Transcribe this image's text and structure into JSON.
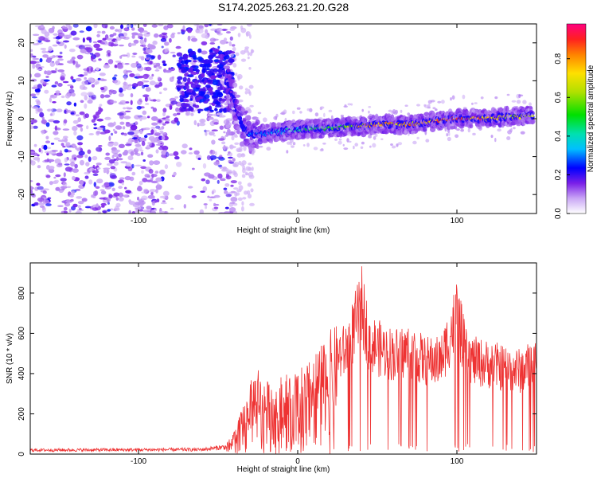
{
  "chart_data": [
    {
      "type": "heatmap",
      "title": "S174.2025.263.21.20.G28",
      "xlabel": "Height of straight line (km)",
      "ylabel": "Frequency (Hz)",
      "xlim": [
        -168,
        150
      ],
      "ylim": [
        -25,
        25
      ],
      "xticks": [
        -100,
        0,
        100
      ],
      "xtick_labels": [
        "-100",
        "0",
        "100"
      ],
      "yticks": [
        -20,
        -10,
        0,
        10,
        20
      ],
      "ytick_labels": [
        "-20",
        "-10",
        "0",
        "10",
        "20"
      ],
      "colorbar": {
        "label": "Normalized spectral amplitude",
        "range": [
          0,
          0.98
        ],
        "ticks": [
          0,
          0.2,
          0.4,
          0.6,
          0.8
        ],
        "tick_labels": [
          "0.0",
          "0.2",
          "0.4",
          "0.6",
          "0.8"
        ]
      },
      "ridge": {
        "x": [
          -45,
          -40,
          -35,
          -30,
          -25,
          -20,
          -15,
          -10,
          -5,
          0,
          10,
          20,
          30,
          40,
          50,
          60,
          70,
          80,
          90,
          100,
          110,
          120,
          130,
          140,
          148
        ],
        "y": [
          10,
          5,
          -2,
          -4,
          -4,
          -4,
          -3.5,
          -3.5,
          -3,
          -3,
          -2.5,
          -2.5,
          -2,
          -2,
          -1.5,
          -1.5,
          -1.5,
          -1,
          -0.5,
          0,
          0,
          0,
          0.5,
          0.5,
          1
        ],
        "amplitude": [
          0.2,
          0.2,
          0.25,
          0.3,
          0.3,
          0.35,
          0.35,
          0.4,
          0.4,
          0.45,
          0.5,
          0.55,
          0.65,
          0.8,
          0.85,
          0.8,
          0.85,
          0.85,
          0.95,
          0.95,
          0.9,
          0.85,
          0.8,
          0.75,
          0.85
        ]
      },
      "noise_region_x": [
        -168,
        -40
      ]
    },
    {
      "type": "line",
      "xlabel": "Height of straight line (km)",
      "ylabel": "SNR (10 * v/v)",
      "xlim": [
        -168,
        150
      ],
      "ylim": [
        0,
        950
      ],
      "xticks": [
        -100,
        0,
        100
      ],
      "xtick_labels": [
        "-100",
        "0",
        "100"
      ],
      "yticks": [
        0,
        200,
        400,
        600,
        800
      ],
      "ytick_labels": [
        "0",
        "200",
        "400",
        "600",
        "800"
      ],
      "color": "#ee3333",
      "envelope": {
        "x": [
          -168,
          -60,
          -45,
          -38,
          -30,
          -25,
          -20,
          -10,
          0,
          10,
          20,
          30,
          38,
          40,
          45,
          50,
          60,
          70,
          80,
          90,
          98,
          100,
          105,
          110,
          120,
          130,
          140,
          150
        ],
        "y": [
          22,
          25,
          40,
          140,
          320,
          420,
          330,
          360,
          380,
          440,
          560,
          620,
          820,
          900,
          680,
          640,
          600,
          620,
          560,
          560,
          780,
          850,
          620,
          560,
          540,
          520,
          500,
          560
        ]
      }
    }
  ]
}
